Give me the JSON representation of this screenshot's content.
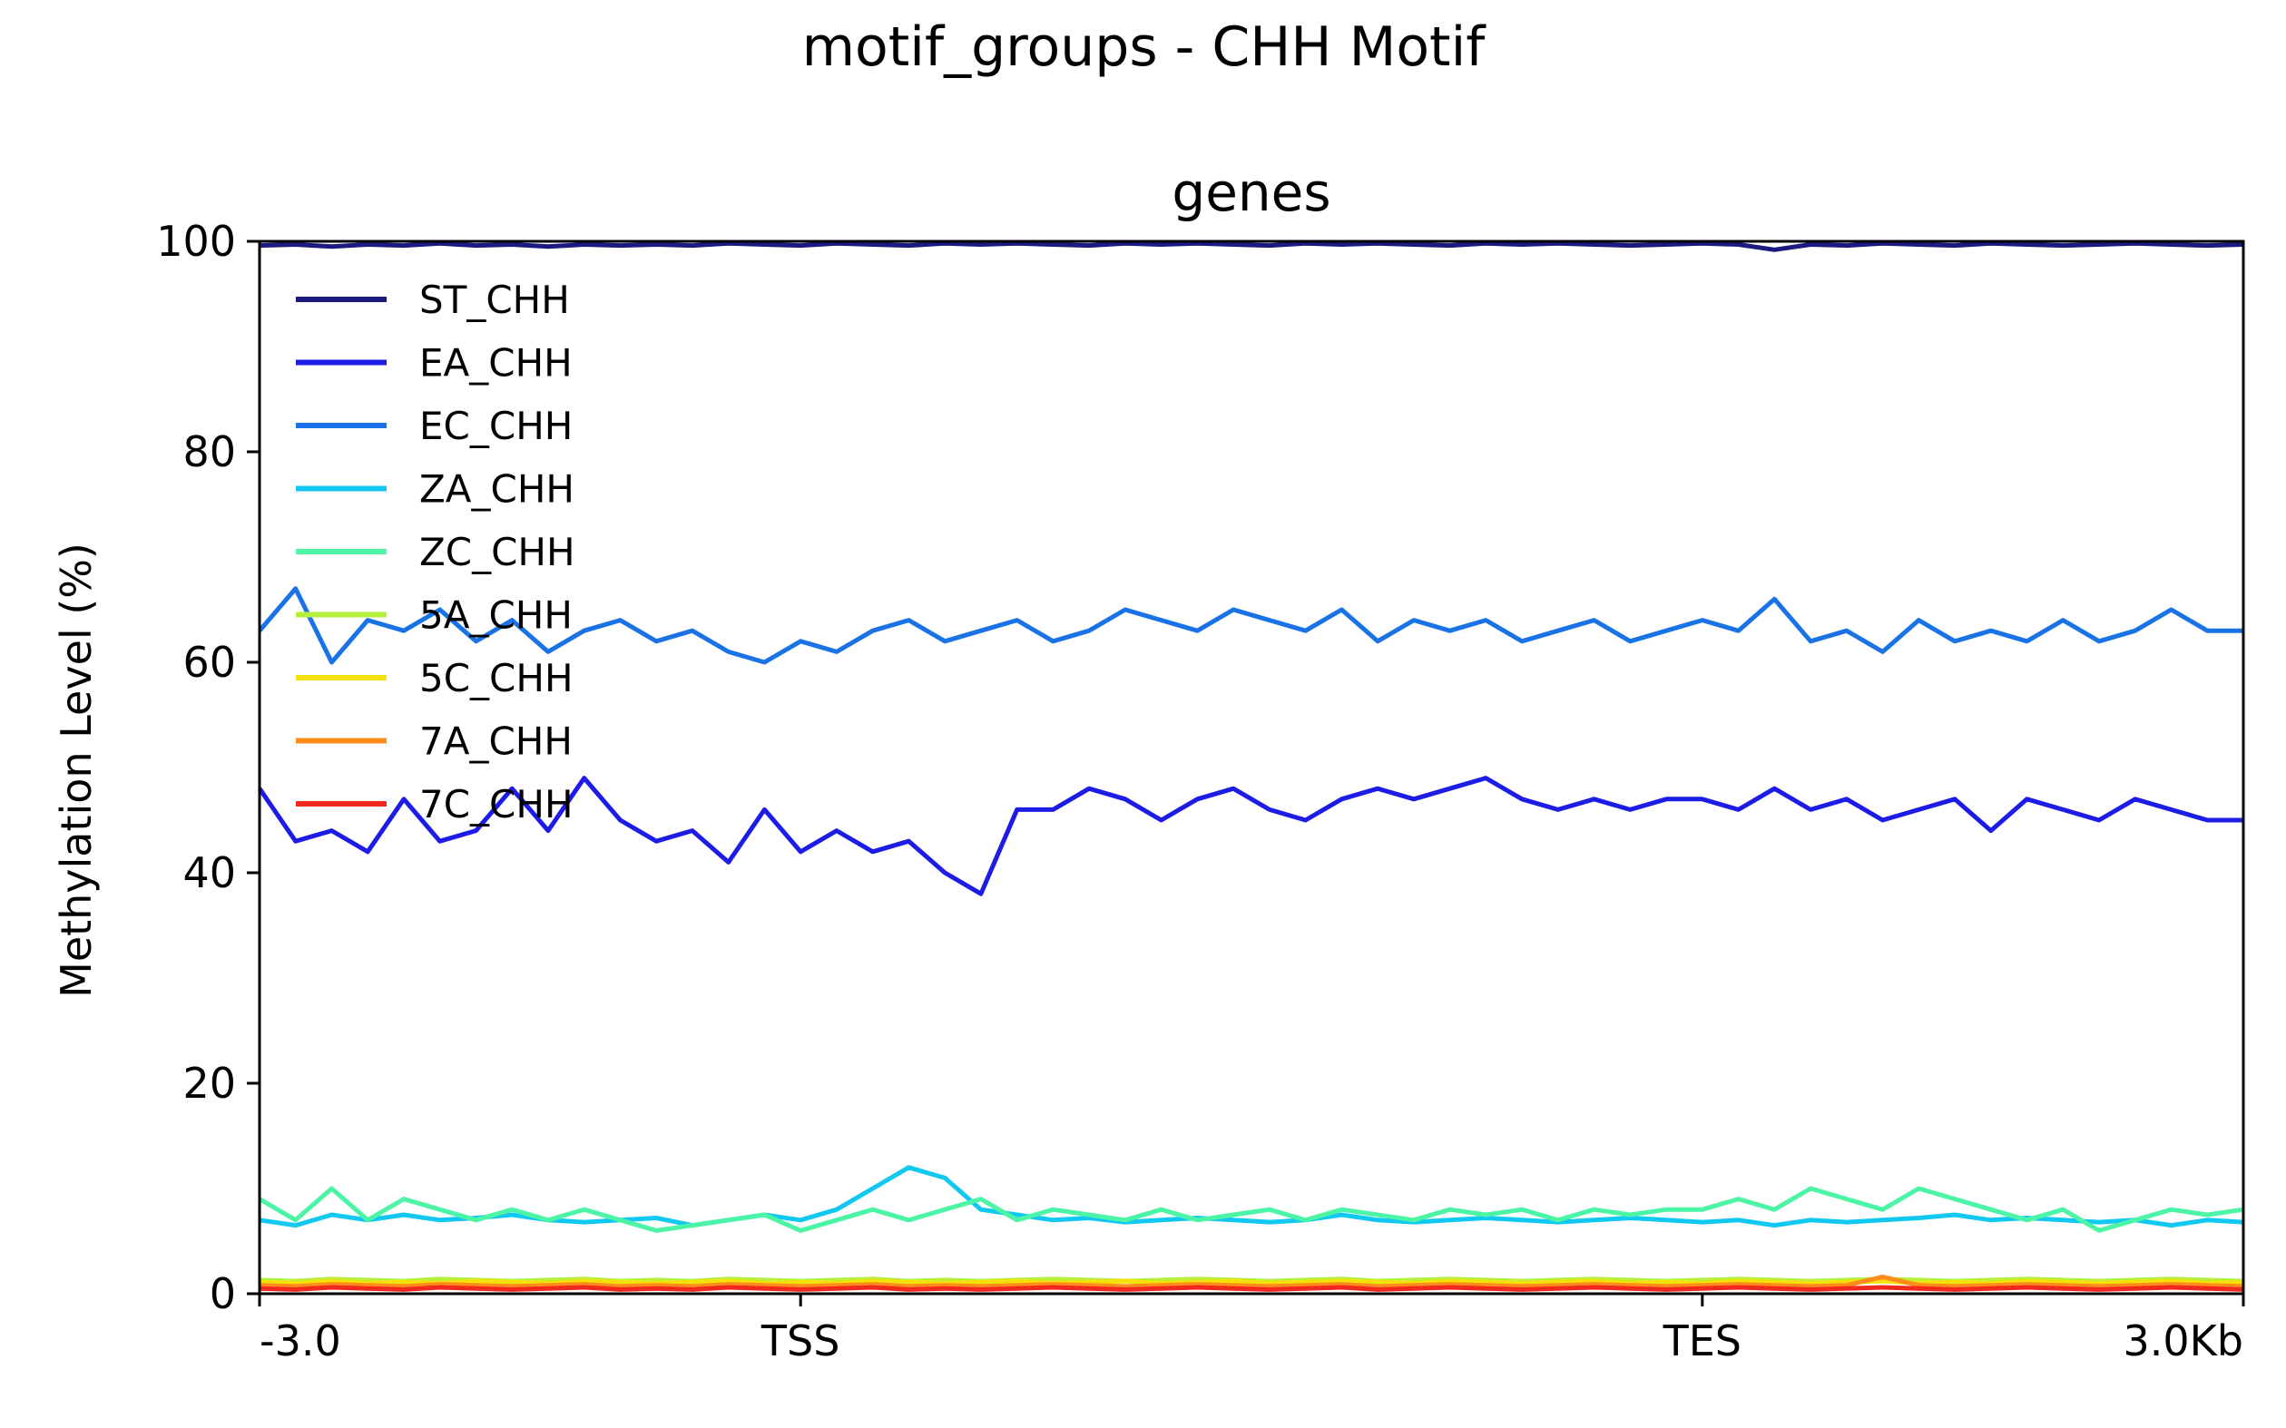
{
  "chart_data": {
    "type": "line",
    "title": "motif_groups - CHH Motif",
    "subtitle": "genes",
    "ylabel": "Methylation Level (%)",
    "xlabel": "",
    "xlim": [
      0,
      110
    ],
    "ylim": [
      0,
      100
    ],
    "x_ticks": [
      {
        "x": 0,
        "label": "-3.0"
      },
      {
        "x": 30,
        "label": "TSS"
      },
      {
        "x": 80,
        "label": "TES"
      },
      {
        "x": 110,
        "label": "3.0Kb"
      }
    ],
    "y_ticks": [
      0,
      20,
      40,
      60,
      80,
      100
    ],
    "y_tick_labels": [
      "0",
      "20",
      "40",
      "60",
      "80",
      "100"
    ],
    "grid": false,
    "legend_position": "upper-left",
    "x": [
      0,
      2,
      4,
      6,
      8,
      10,
      12,
      14,
      16,
      18,
      20,
      22,
      24,
      26,
      28,
      30,
      32,
      34,
      36,
      38,
      40,
      42,
      44,
      46,
      48,
      50,
      52,
      54,
      56,
      58,
      60,
      62,
      64,
      66,
      68,
      70,
      72,
      74,
      76,
      78,
      80,
      82,
      84,
      86,
      88,
      90,
      92,
      94,
      96,
      98,
      100,
      102,
      104,
      106,
      108,
      110
    ],
    "series": [
      {
        "name": "ST_CHH",
        "color": "#1a1a80",
        "values": [
          99.6,
          99.7,
          99.5,
          99.7,
          99.6,
          99.8,
          99.6,
          99.7,
          99.5,
          99.7,
          99.6,
          99.7,
          99.6,
          99.8,
          99.7,
          99.6,
          99.8,
          99.7,
          99.6,
          99.8,
          99.7,
          99.8,
          99.7,
          99.6,
          99.8,
          99.7,
          99.8,
          99.7,
          99.6,
          99.8,
          99.7,
          99.8,
          99.7,
          99.6,
          99.8,
          99.7,
          99.8,
          99.7,
          99.6,
          99.7,
          99.8,
          99.7,
          99.2,
          99.7,
          99.6,
          99.8,
          99.7,
          99.6,
          99.8,
          99.7,
          99.6,
          99.7,
          99.8,
          99.7,
          99.6,
          99.7
        ]
      },
      {
        "name": "EA_CHH",
        "color": "#1c1ce6",
        "values": [
          48,
          43,
          44,
          42,
          47,
          43,
          44,
          48,
          44,
          49,
          45,
          43,
          44,
          41,
          46,
          42,
          44,
          42,
          43,
          40,
          38,
          46,
          46,
          48,
          47,
          45,
          47,
          48,
          46,
          45,
          47,
          48,
          47,
          48,
          49,
          47,
          46,
          47,
          46,
          47,
          47,
          46,
          48,
          46,
          47,
          45,
          46,
          47,
          44,
          47,
          46,
          45,
          47,
          46,
          45,
          45
        ]
      },
      {
        "name": "EC_CHH",
        "color": "#1a73e6",
        "values": [
          63,
          67,
          60,
          64,
          63,
          65,
          62,
          64,
          61,
          63,
          64,
          62,
          63,
          61,
          60,
          62,
          61,
          63,
          64,
          62,
          63,
          64,
          62,
          63,
          65,
          64,
          63,
          65,
          64,
          63,
          65,
          62,
          64,
          63,
          64,
          62,
          63,
          64,
          62,
          63,
          64,
          63,
          66,
          62,
          63,
          61,
          64,
          62,
          63,
          62,
          64,
          62,
          63,
          65,
          63,
          63
        ]
      },
      {
        "name": "ZA_CHH",
        "color": "#10c8f0",
        "values": [
          7,
          6.5,
          7.5,
          7,
          7.5,
          7,
          7.2,
          7.5,
          7,
          6.8,
          7,
          7.2,
          6.5,
          7,
          7.5,
          7,
          8,
          10,
          12,
          11,
          8,
          7.5,
          7,
          7.2,
          6.8,
          7,
          7.2,
          7,
          6.8,
          7,
          7.5,
          7,
          6.8,
          7,
          7.2,
          7,
          6.8,
          7,
          7.2,
          7,
          6.8,
          7,
          6.5,
          7,
          6.8,
          7,
          7.2,
          7.5,
          7,
          7.2,
          7,
          6.8,
          7,
          6.5,
          7,
          6.8
        ]
      },
      {
        "name": "ZC_CHH",
        "color": "#4cf5a6",
        "values": [
          9,
          7,
          10,
          7,
          9,
          8,
          7,
          8,
          7,
          8,
          7,
          6,
          6.5,
          7,
          7.5,
          6,
          7,
          8,
          7,
          8,
          9,
          7,
          8,
          7.5,
          7,
          8,
          7,
          7.5,
          8,
          7,
          8,
          7.5,
          7,
          8,
          7.5,
          8,
          7,
          8,
          7.5,
          8,
          8,
          9,
          8,
          10,
          9,
          8,
          10,
          9,
          8,
          7,
          8,
          6,
          7,
          8,
          7.5,
          8
        ]
      },
      {
        "name": "5A_CHH",
        "color": "#b4f03c",
        "values": [
          1.3,
          1.2,
          1.4,
          1.3,
          1.2,
          1.4,
          1.3,
          1.2,
          1.3,
          1.4,
          1.2,
          1.3,
          1.2,
          1.4,
          1.3,
          1.2,
          1.3,
          1.4,
          1.2,
          1.3,
          1.2,
          1.3,
          1.4,
          1.3,
          1.2,
          1.3,
          1.4,
          1.3,
          1.2,
          1.3,
          1.4,
          1.2,
          1.3,
          1.4,
          1.3,
          1.2,
          1.3,
          1.4,
          1.3,
          1.2,
          1.3,
          1.4,
          1.3,
          1.2,
          1.3,
          1.4,
          1.3,
          1.2,
          1.3,
          1.4,
          1.3,
          1.2,
          1.3,
          1.4,
          1.3,
          1.2
        ]
      },
      {
        "name": "5C_CHH",
        "color": "#f5e10a",
        "values": [
          1.1,
          1.0,
          1.2,
          1.0,
          1.1,
          1.0,
          1.2,
          1.1,
          1.0,
          1.2,
          1.1,
          1.0,
          1.1,
          1.2,
          1.0,
          1.1,
          1.0,
          1.2,
          1.1,
          1.0,
          1.1,
          1.2,
          1.0,
          1.1,
          1.2,
          1.0,
          1.1,
          1.2,
          1.0,
          1.1,
          1.2,
          1.1,
          1.0,
          1.2,
          1.1,
          1.0,
          1.1,
          1.2,
          1.0,
          1.1,
          1.0,
          1.2,
          1.1,
          1.0,
          1.1,
          1.2,
          1.0,
          1.1,
          1.0,
          1.2,
          1.1,
          1.0,
          1.1,
          1.2,
          1.0,
          1.1
        ]
      },
      {
        "name": "7A_CHH",
        "color": "#ff8c1a",
        "values": [
          0.8,
          0.7,
          0.9,
          0.8,
          0.7,
          0.9,
          0.8,
          0.7,
          0.8,
          0.9,
          0.7,
          0.8,
          0.7,
          0.9,
          0.8,
          0.7,
          0.8,
          0.9,
          0.7,
          0.8,
          0.7,
          0.8,
          0.9,
          0.8,
          0.7,
          0.8,
          0.9,
          0.8,
          0.7,
          0.8,
          0.9,
          0.7,
          0.8,
          0.9,
          0.8,
          0.7,
          0.8,
          0.9,
          0.8,
          0.7,
          0.8,
          0.9,
          0.8,
          0.7,
          0.8,
          1.6,
          0.8,
          0.7,
          0.8,
          0.9,
          0.8,
          0.7,
          0.8,
          0.9,
          0.8,
          0.7
        ]
      },
      {
        "name": "7C_CHH",
        "color": "#f0281e",
        "values": [
          0.5,
          0.4,
          0.6,
          0.5,
          0.4,
          0.6,
          0.5,
          0.4,
          0.5,
          0.6,
          0.4,
          0.5,
          0.4,
          0.6,
          0.5,
          0.4,
          0.5,
          0.6,
          0.4,
          0.5,
          0.4,
          0.5,
          0.6,
          0.5,
          0.4,
          0.5,
          0.6,
          0.5,
          0.4,
          0.5,
          0.6,
          0.4,
          0.5,
          0.6,
          0.5,
          0.4,
          0.5,
          0.6,
          0.5,
          0.4,
          0.5,
          0.6,
          0.5,
          0.4,
          0.5,
          0.6,
          0.5,
          0.4,
          0.5,
          0.6,
          0.5,
          0.4,
          0.5,
          0.6,
          0.5,
          0.4
        ]
      }
    ]
  }
}
